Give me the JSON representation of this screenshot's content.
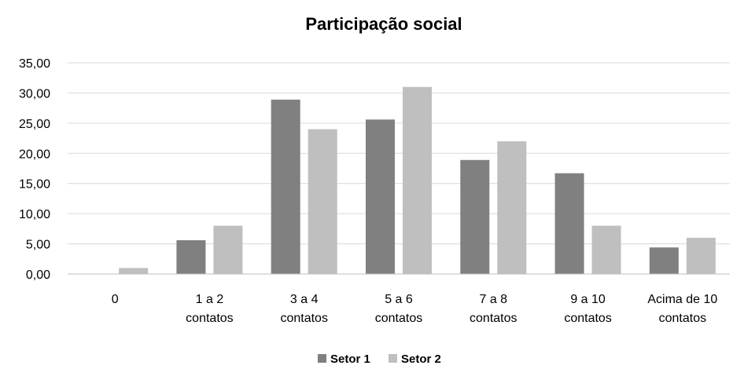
{
  "chart_data": {
    "type": "bar",
    "title": "Participação social",
    "xlabel": "",
    "ylabel": "",
    "ylim": [
      0,
      35
    ],
    "yticks": [
      "0,00",
      "5,00",
      "10,00",
      "15,00",
      "20,00",
      "25,00",
      "30,00",
      "35,00"
    ],
    "categories": [
      [
        "0"
      ],
      [
        "1 a 2",
        "contatos"
      ],
      [
        "3 a 4",
        "contatos"
      ],
      [
        "5 a 6",
        "contatos"
      ],
      [
        "7 a 8",
        "contatos"
      ],
      [
        "9 a 10",
        "contatos"
      ],
      [
        "Acima de 10",
        "contatos"
      ]
    ],
    "series": [
      {
        "name": "Setor 1",
        "color": "#808080",
        "values": [
          0,
          5.6,
          28.9,
          25.6,
          18.9,
          16.7,
          4.4
        ]
      },
      {
        "name": "Setor 2",
        "color": "#bfbfbf",
        "values": [
          1.0,
          8.0,
          24.0,
          31.0,
          22.0,
          8.0,
          6.0
        ]
      }
    ],
    "grid": true,
    "legend": "bottom-center",
    "gridColor": "#d9d9d9",
    "axisColor": "#bfbfbf"
  }
}
